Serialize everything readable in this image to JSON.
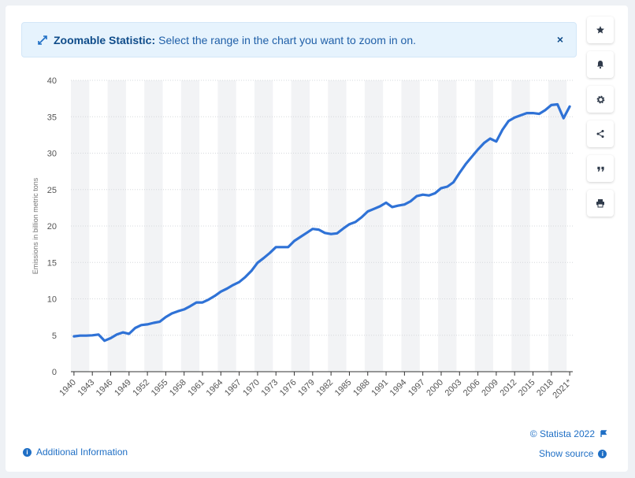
{
  "banner": {
    "title": "Zoomable Statistic:",
    "message": "Select the range in the chart you want to zoom in on.",
    "close_label": "×"
  },
  "sidebar": {
    "buttons": [
      {
        "name": "favorite",
        "icon": "star-icon"
      },
      {
        "name": "notification",
        "icon": "bell-icon"
      },
      {
        "name": "settings",
        "icon": "gear-icon"
      },
      {
        "name": "share",
        "icon": "share-icon"
      },
      {
        "name": "cite",
        "icon": "quote-icon"
      },
      {
        "name": "print",
        "icon": "printer-icon"
      }
    ]
  },
  "footer": {
    "credit": "© Statista 2022",
    "additional_info": "Additional Information",
    "show_source": "Show source"
  },
  "colors": {
    "line": "#2f72d6",
    "band": "#f2f3f5",
    "accent": "#1f6fc5"
  },
  "chart_data": {
    "type": "line",
    "title": "",
    "ylabel": "Emissions in billion metric tons",
    "xlabel": "",
    "ylim": [
      0,
      40
    ],
    "yticks": [
      0,
      5,
      10,
      15,
      20,
      25,
      30,
      35,
      40
    ],
    "grid": true,
    "xtick_labels": [
      "1940",
      "1943",
      "1946",
      "1949",
      "1952",
      "1955",
      "1958",
      "1961",
      "1964",
      "1967",
      "1970",
      "1973",
      "1976",
      "1979",
      "1982",
      "1985",
      "1988",
      "1991",
      "1994",
      "1997",
      "2000",
      "2003",
      "2006",
      "2009",
      "2012",
      "2015",
      "2018",
      "2021*"
    ],
    "series": [
      {
        "x": [
          "1940",
          "1941",
          "1942",
          "1943",
          "1944",
          "1945",
          "1946",
          "1947",
          "1948",
          "1949",
          "1950",
          "1951",
          "1952",
          "1953",
          "1954",
          "1955",
          "1956",
          "1957",
          "1958",
          "1959",
          "1960",
          "1961",
          "1962",
          "1963",
          "1964",
          "1965",
          "1966",
          "1967",
          "1968",
          "1969",
          "1970",
          "1971",
          "1972",
          "1973",
          "1974",
          "1975",
          "1976",
          "1977",
          "1978",
          "1979",
          "1980",
          "1981",
          "1982",
          "1983",
          "1984",
          "1985",
          "1986",
          "1987",
          "1988",
          "1989",
          "1990",
          "1991",
          "1992",
          "1993",
          "1994",
          "1995",
          "1996",
          "1997",
          "1998",
          "1999",
          "2000",
          "2001",
          "2002",
          "2003",
          "2004",
          "2005",
          "2006",
          "2007",
          "2008",
          "2009",
          "2010",
          "2011",
          "2012",
          "2013",
          "2014",
          "2015",
          "2016",
          "2017",
          "2018",
          "2019",
          "2020",
          "2021*"
        ],
        "values": [
          4.85,
          4.95,
          4.95,
          5.0,
          5.1,
          4.25,
          4.6,
          5.1,
          5.4,
          5.2,
          6.0,
          6.4,
          6.5,
          6.7,
          6.85,
          7.5,
          8.0,
          8.3,
          8.55,
          9.0,
          9.5,
          9.5,
          9.9,
          10.4,
          11.0,
          11.4,
          11.9,
          12.3,
          13.0,
          13.85,
          14.95,
          15.6,
          16.3,
          17.1,
          17.1,
          17.1,
          17.95,
          18.5,
          19.05,
          19.6,
          19.5,
          19.05,
          18.9,
          19.0,
          19.65,
          20.25,
          20.55,
          21.2,
          22.0,
          22.35,
          22.7,
          23.2,
          22.6,
          22.8,
          22.95,
          23.4,
          24.1,
          24.3,
          24.2,
          24.5,
          25.2,
          25.4,
          26.0,
          27.3,
          28.5,
          29.5,
          30.5,
          31.4,
          32.0,
          31.6,
          33.2,
          34.4,
          34.9,
          35.2,
          35.5,
          35.5,
          35.4,
          35.9,
          36.6,
          36.7,
          34.8,
          36.4
        ]
      }
    ]
  }
}
